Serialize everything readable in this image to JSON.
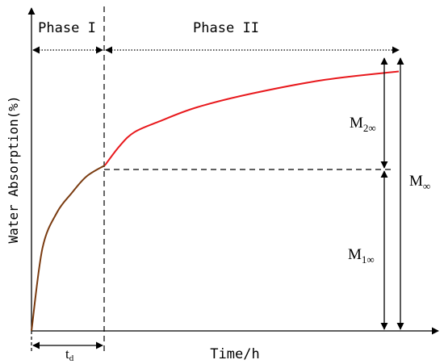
{
  "labels": {
    "phase_1": "Phase I",
    "phase_2": "Phase II",
    "y_axis": "Water Absorption(%)",
    "x_axis": "Time/h",
    "t_d": {
      "base": "t",
      "sub": "d"
    },
    "m_2inf": {
      "base": "M",
      "sub": "2∞"
    },
    "m_1inf": {
      "base": "M",
      "sub": "1∞"
    },
    "m_inf": {
      "base": "M",
      "sub": "∞"
    }
  },
  "colors": {
    "axis": "#000000",
    "phase_1_curve": "#7a3b10",
    "phase_2_curve": "#e8191d",
    "guide_lines": "#000000"
  },
  "curve": {
    "phase_1": [
      [
        0,
        0
      ],
      [
        0.03,
        0.3
      ],
      [
        0.07,
        0.43
      ],
      [
        0.11,
        0.5
      ],
      [
        0.15,
        0.56
      ],
      [
        0.2,
        0.6
      ]
    ],
    "phase_2": [
      [
        0.2,
        0.6
      ],
      [
        0.24,
        0.67
      ],
      [
        0.28,
        0.72
      ],
      [
        0.35,
        0.76
      ],
      [
        0.45,
        0.81
      ],
      [
        0.6,
        0.86
      ],
      [
        0.8,
        0.91
      ],
      [
        1,
        0.94
      ]
    ]
  }
}
